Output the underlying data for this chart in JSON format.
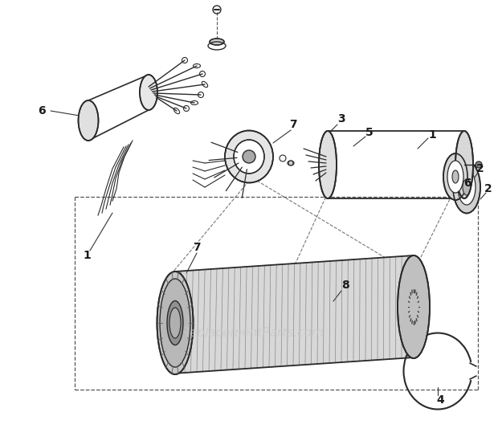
{
  "bg_color": "#ffffff",
  "line_color": "#2a2a2a",
  "label_color": "#1a1a1a",
  "watermark_text": "eReplacementParts.com",
  "watermark_color": "#c8c8c8",
  "watermark_fontsize": 11,
  "fig_width": 6.2,
  "fig_height": 5.44,
  "dpi": 100
}
